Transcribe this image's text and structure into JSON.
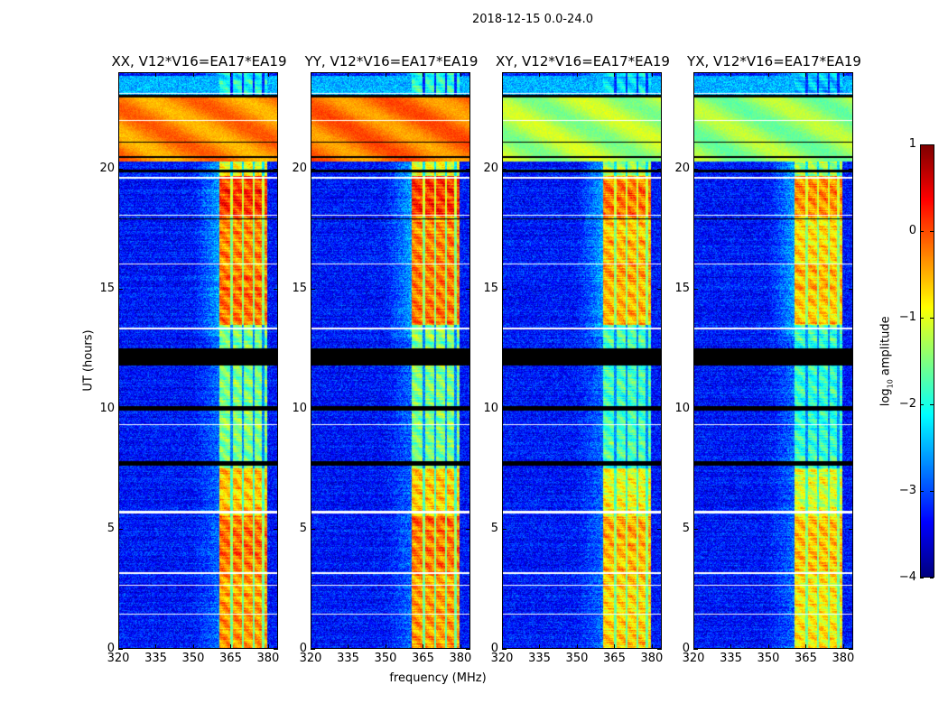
{
  "chart_data": {
    "type": "heatmap",
    "title": "2018-12-15 0.0-24.0",
    "panels": [
      {
        "title": "XX, V12*V16=EA17*EA19",
        "pol": "XX",
        "scale": 0.0,
        "broadband_level": -0.3
      },
      {
        "title": "YY, V12*V16=EA17*EA19",
        "pol": "YY",
        "scale": 0.0,
        "broadband_level": -0.2
      },
      {
        "title": "XY, V12*V16=EA17*EA19",
        "pol": "XY",
        "scale": -0.3,
        "broadband_level": -1.3
      },
      {
        "title": "YX, V12*V16=EA17*EA19",
        "pol": "YX",
        "scale": -0.4,
        "broadband_level": -1.4
      }
    ],
    "xlabel": "frequency (MHz)",
    "ylabel": "UT (hours)",
    "xlim": [
      320,
      384
    ],
    "ylim": [
      0,
      24
    ],
    "xticks": [
      320,
      335,
      350,
      365,
      380
    ],
    "yticks": [
      0,
      5,
      10,
      15,
      20
    ],
    "colorbar": {
      "label": "log10 amplitude",
      "label_main": "log",
      "label_sub": "10",
      "label_rest": " amplitude",
      "range": [
        -4,
        1
      ],
      "ticks": [
        1,
        0,
        -1,
        -2,
        -3,
        -4
      ],
      "tick_labels": [
        "1",
        "0",
        "−1",
        "−2",
        "−3",
        "−4"
      ],
      "colormap": "jet"
    },
    "background_level": -3.3,
    "rfi_band_mhz": [
      360.5,
      380
    ],
    "subband_gaps_mhz": [
      365.5,
      370.2,
      374.5,
      378.3
    ],
    "band_levels": [
      {
        "hours": [
          0,
          3.2
        ],
        "level": -0.4
      },
      {
        "hours": [
          3.2,
          5.5
        ],
        "level": -0.2
      },
      {
        "hours": [
          5.5,
          7.5
        ],
        "level": -0.6
      },
      {
        "hours": [
          7.5,
          13.5
        ],
        "level": -1.5
      },
      {
        "hours": [
          13.5,
          16
        ],
        "level": -0.2
      },
      {
        "hours": [
          16,
          18
        ],
        "level": -0.3
      },
      {
        "hours": [
          18,
          19.7
        ],
        "level": 0.1
      },
      {
        "hours": [
          19.7,
          20.3
        ],
        "level": -1.0
      },
      {
        "hours": [
          20.3,
          23
        ],
        "level": -0.4
      },
      {
        "hours": [
          23,
          24
        ],
        "level": -2.0
      }
    ],
    "broadband_hours": [
      20.3,
      23.0
    ],
    "flagged_hours": [
      [
        11.8,
        12.5
      ],
      [
        9.9,
        10.1
      ],
      [
        7.6,
        7.8
      ],
      [
        19.85,
        19.95
      ],
      [
        20.45,
        20.55
      ],
      [
        21.1,
        21.15
      ],
      [
        23.0,
        23.1
      ],
      [
        17.9,
        17.95
      ]
    ],
    "gap_hours": [
      [
        1.4,
        1.43
      ],
      [
        2.6,
        2.63
      ],
      [
        3.1,
        3.16
      ],
      [
        5.6,
        5.72
      ],
      [
        9.3,
        9.36
      ],
      [
        13.3,
        13.36
      ],
      [
        16.0,
        16.06
      ],
      [
        18.05,
        18.1
      ],
      [
        19.6,
        19.66
      ],
      [
        22.0,
        22.04
      ],
      [
        23.12,
        23.18
      ]
    ]
  }
}
